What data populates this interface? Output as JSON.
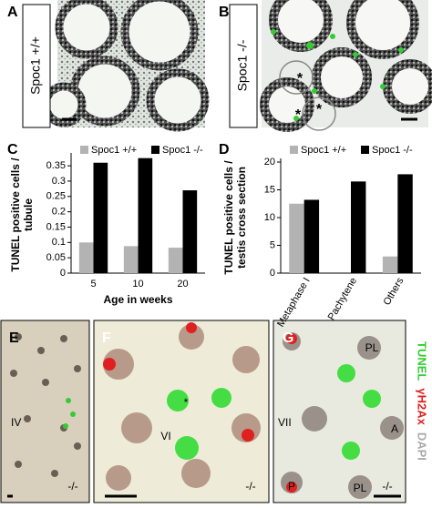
{
  "panels": [
    {
      "label": "A",
      "side_label": "Spoc1 +/+"
    },
    {
      "label": "B",
      "side_label": "Spoc1 -/-",
      "marks": [
        "*",
        "*",
        "*"
      ]
    }
  ],
  "chart_data": [
    {
      "type": "bar",
      "label": "C",
      "ylabel": [
        "TUNEL positive cells /",
        "tubule"
      ],
      "xlabel": "Age in weeks",
      "categories": [
        "5",
        "10",
        "20"
      ],
      "series": [
        {
          "name": "Spoc1 +/+",
          "color": "#b3b3b3",
          "values": [
            0.1,
            0.088,
            0.083
          ]
        },
        {
          "name": "Spoc1 -/-",
          "color": "#000000",
          "values": [
            0.36,
            0.375,
            0.27
          ]
        }
      ],
      "ylim": [
        0,
        0.38
      ],
      "yticks": [
        0,
        0.05,
        0.1,
        0.15,
        0.2,
        0.25,
        0.3,
        0.35
      ],
      "rotate_categories": false
    },
    {
      "type": "bar",
      "label": "D",
      "ylabel": [
        "TUNEL positive cells /",
        "testis cross section"
      ],
      "categories": [
        "Metaphase I",
        "Pachytene",
        "Others"
      ],
      "series": [
        {
          "name": "Spoc1 +/+",
          "color": "#b3b3b3",
          "values": [
            12.5,
            0,
            3
          ]
        },
        {
          "name": "Spoc1 -/-",
          "color": "#000000",
          "values": [
            13.2,
            16.5,
            17.8
          ]
        }
      ],
      "ylim": [
        0,
        20
      ],
      "yticks": [
        0,
        5,
        10,
        15,
        20
      ],
      "rotate_categories": true
    }
  ],
  "lower_panels": [
    {
      "label": "E",
      "marks": [
        "IV",
        "-/-"
      ]
    },
    {
      "label": "F",
      "marks": [
        "*",
        "VI",
        "-/-"
      ]
    },
    {
      "label": "G",
      "marks": [
        "VII",
        "PL",
        "A",
        "PL",
        "P",
        "-/-"
      ]
    }
  ],
  "stain_legend": [
    {
      "name": "TUNEL",
      "color": "#33cc33"
    },
    {
      "name": "γH2Ax",
      "color": "#dd2222"
    },
    {
      "name": "DAPI",
      "color": "#aaaaaa"
    }
  ]
}
